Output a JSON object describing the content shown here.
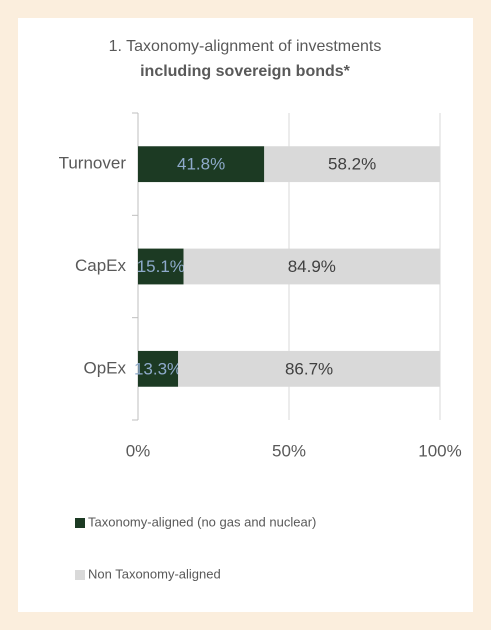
{
  "chart_data": {
    "type": "stacked_bar_horizontal",
    "title": "1. Taxonomy-alignment of investments",
    "subtitle": "including sovereign bonds*",
    "categories": [
      "Turnover",
      "CapEx",
      "OpEx"
    ],
    "series": [
      {
        "name": "Taxonomy-aligned (no gas and nuclear)",
        "color": "#1c3a23",
        "label_color": "#8eaacb",
        "values": [
          41.8,
          15.1,
          13.3
        ],
        "value_labels": [
          "41.8%",
          "15.1%",
          "13.3%"
        ]
      },
      {
        "name": "Non Taxonomy-aligned",
        "color": "#d9d9d9",
        "label_color": "#404040",
        "values": [
          58.2,
          84.9,
          86.7
        ],
        "value_labels": [
          "58.2%",
          "84.9%",
          "86.7%"
        ]
      }
    ],
    "xlim": [
      0,
      100
    ],
    "xticks": [
      {
        "value": 0,
        "label": "0%"
      },
      {
        "value": 50,
        "label": "50%"
      },
      {
        "value": 100,
        "label": "100%"
      }
    ],
    "grid": true
  }
}
